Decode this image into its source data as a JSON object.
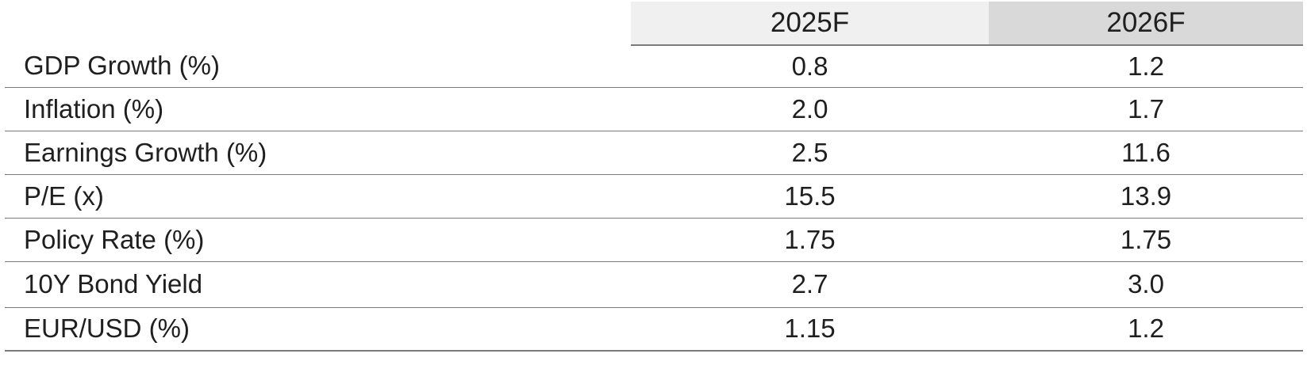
{
  "table": {
    "headers": [
      "",
      "2025F",
      "2026F"
    ],
    "rows": [
      {
        "label": "GDP Growth (%)",
        "y2025": "0.8",
        "y2026": "1.2"
      },
      {
        "label": "Inflation (%)",
        "y2025": "2.0",
        "y2026": "1.7"
      },
      {
        "label": "Earnings Growth (%)",
        "y2025": "2.5",
        "y2026": "11.6"
      },
      {
        "label": "P/E (x)",
        "y2025": "15.5",
        "y2026": "13.9"
      },
      {
        "label": "Policy Rate (%)",
        "y2025": "1.75",
        "y2026": "1.75"
      },
      {
        "label": "10Y Bond Yield",
        "y2025": "2.7",
        "y2026": "3.0"
      },
      {
        "label": "EUR/USD (%)",
        "y2025": "1.15",
        "y2026": "1.2"
      }
    ]
  },
  "colors": {
    "header_2025_bg": "#f0f0f0",
    "header_2026_bg": "#d9d9d9",
    "rule": "#7a7a7a",
    "text": "#1f1f1f"
  }
}
